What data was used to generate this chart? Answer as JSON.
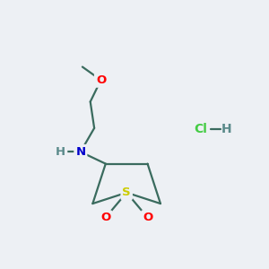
{
  "background_color": "#edf0f4",
  "bond_color": "#3a6b5e",
  "atom_colors": {
    "O": "#ff0000",
    "N": "#0000cc",
    "S": "#cccc00",
    "Cl": "#44cc44",
    "H_hcl": "#5a8a8a",
    "H_nh": "#5a8a8a"
  },
  "figsize": [
    3.0,
    3.0
  ],
  "dpi": 100,
  "lw": 1.6
}
